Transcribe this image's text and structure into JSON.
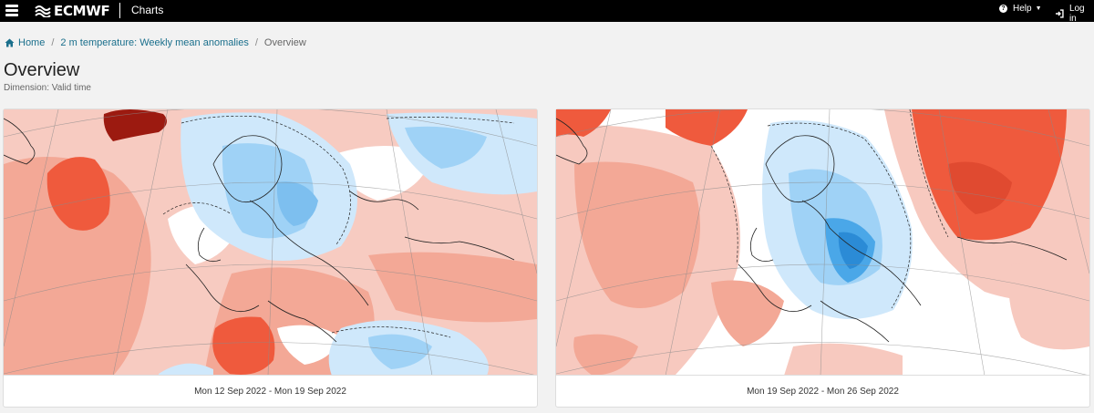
{
  "header": {
    "logo_text": "ECMWF",
    "section_label": "Charts",
    "help_label": "Help",
    "login_label": "Log in"
  },
  "breadcrumb": {
    "home": "Home",
    "parent": "2 m temperature: Weekly mean anomalies",
    "current": "Overview",
    "separator": "/"
  },
  "page": {
    "title": "Overview",
    "dimension": "Dimension: Valid time"
  },
  "charts": [
    {
      "caption": "Mon 12 Sep 2022 - Mon 19 Sep 2022"
    },
    {
      "caption": "Mon 19 Sep 2022 - Mon 26 Sep 2022"
    }
  ],
  "colors": {
    "topbar": "#000000",
    "link": "#1a6f8c",
    "anomaly_warm_light": "#f7c9bf",
    "anomaly_warm": "#f2a08f",
    "anomaly_hot": "#ef5a3d",
    "anomaly_very_hot": "#9c1a10",
    "anomaly_neutral": "#ffffff",
    "anomaly_cool_light": "#cfe8fb",
    "anomaly_cool": "#9fd2f6",
    "anomaly_cold": "#4aa7e8"
  }
}
